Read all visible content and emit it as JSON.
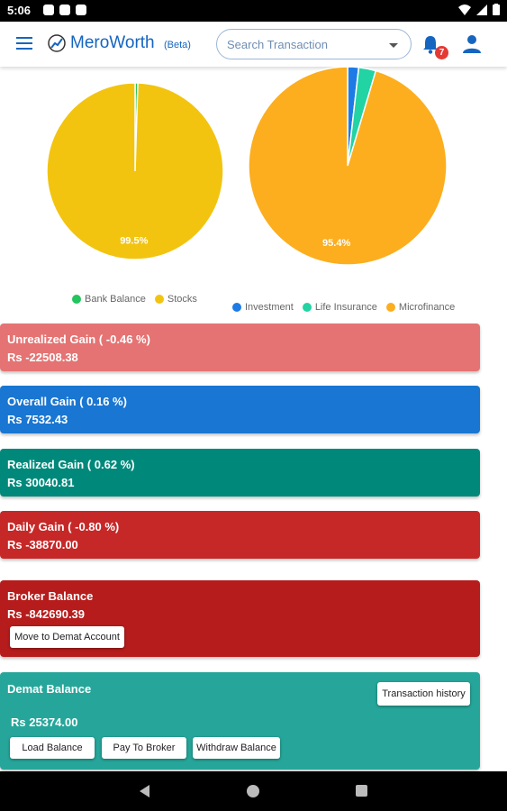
{
  "status_bar": {
    "time": "5:06"
  },
  "app": {
    "title": "MeroWorth",
    "subtitle": "(Beta)",
    "search_placeholder": "Search Transaction",
    "notification_count": "7"
  },
  "chart_data": [
    {
      "type": "pie",
      "labels": [
        "Bank Balance",
        "Stocks"
      ],
      "values": [
        0.5,
        99.5
      ],
      "colors": [
        "#22c55e",
        "#f2c40f"
      ],
      "data_labels": [
        "",
        "99.5%"
      ]
    },
    {
      "type": "pie",
      "labels": [
        "Investment",
        "Life Insurance",
        "Microfinance"
      ],
      "values": [
        1.8,
        2.8,
        95.4
      ],
      "colors": [
        "#1e7be5",
        "#22d3a3",
        "#fcae1e"
      ],
      "data_labels": [
        "",
        "",
        "95.4%"
      ]
    }
  ],
  "cards": {
    "unrealized": {
      "title": "Unrealized Gain ( -0.46 %)",
      "value": "Rs -22508.38",
      "color": "#e57373"
    },
    "overall": {
      "title": "Overall Gain ( 0.16 %)",
      "value": "Rs 7532.43",
      "color": "#1976d2"
    },
    "realized": {
      "title": "Realized Gain ( 0.62 %)",
      "value": "Rs 30040.81",
      "color": "#00897b"
    },
    "daily": {
      "title": "Daily Gain ( -0.80 %)",
      "value": "Rs -38870.00",
      "color": "#c62828"
    },
    "broker": {
      "title": "Broker Balance",
      "value": "Rs -842690.39",
      "button": "Move to Demat Account",
      "color": "#b71c1c"
    },
    "demat": {
      "title": "Demat Balance",
      "value": "Rs 25374.00",
      "color": "#26a69a",
      "history_button": "Transaction history",
      "load_button": "Load Balance",
      "pay_button": "Pay To Broker",
      "withdraw_button": "Withdraw Balance"
    }
  }
}
